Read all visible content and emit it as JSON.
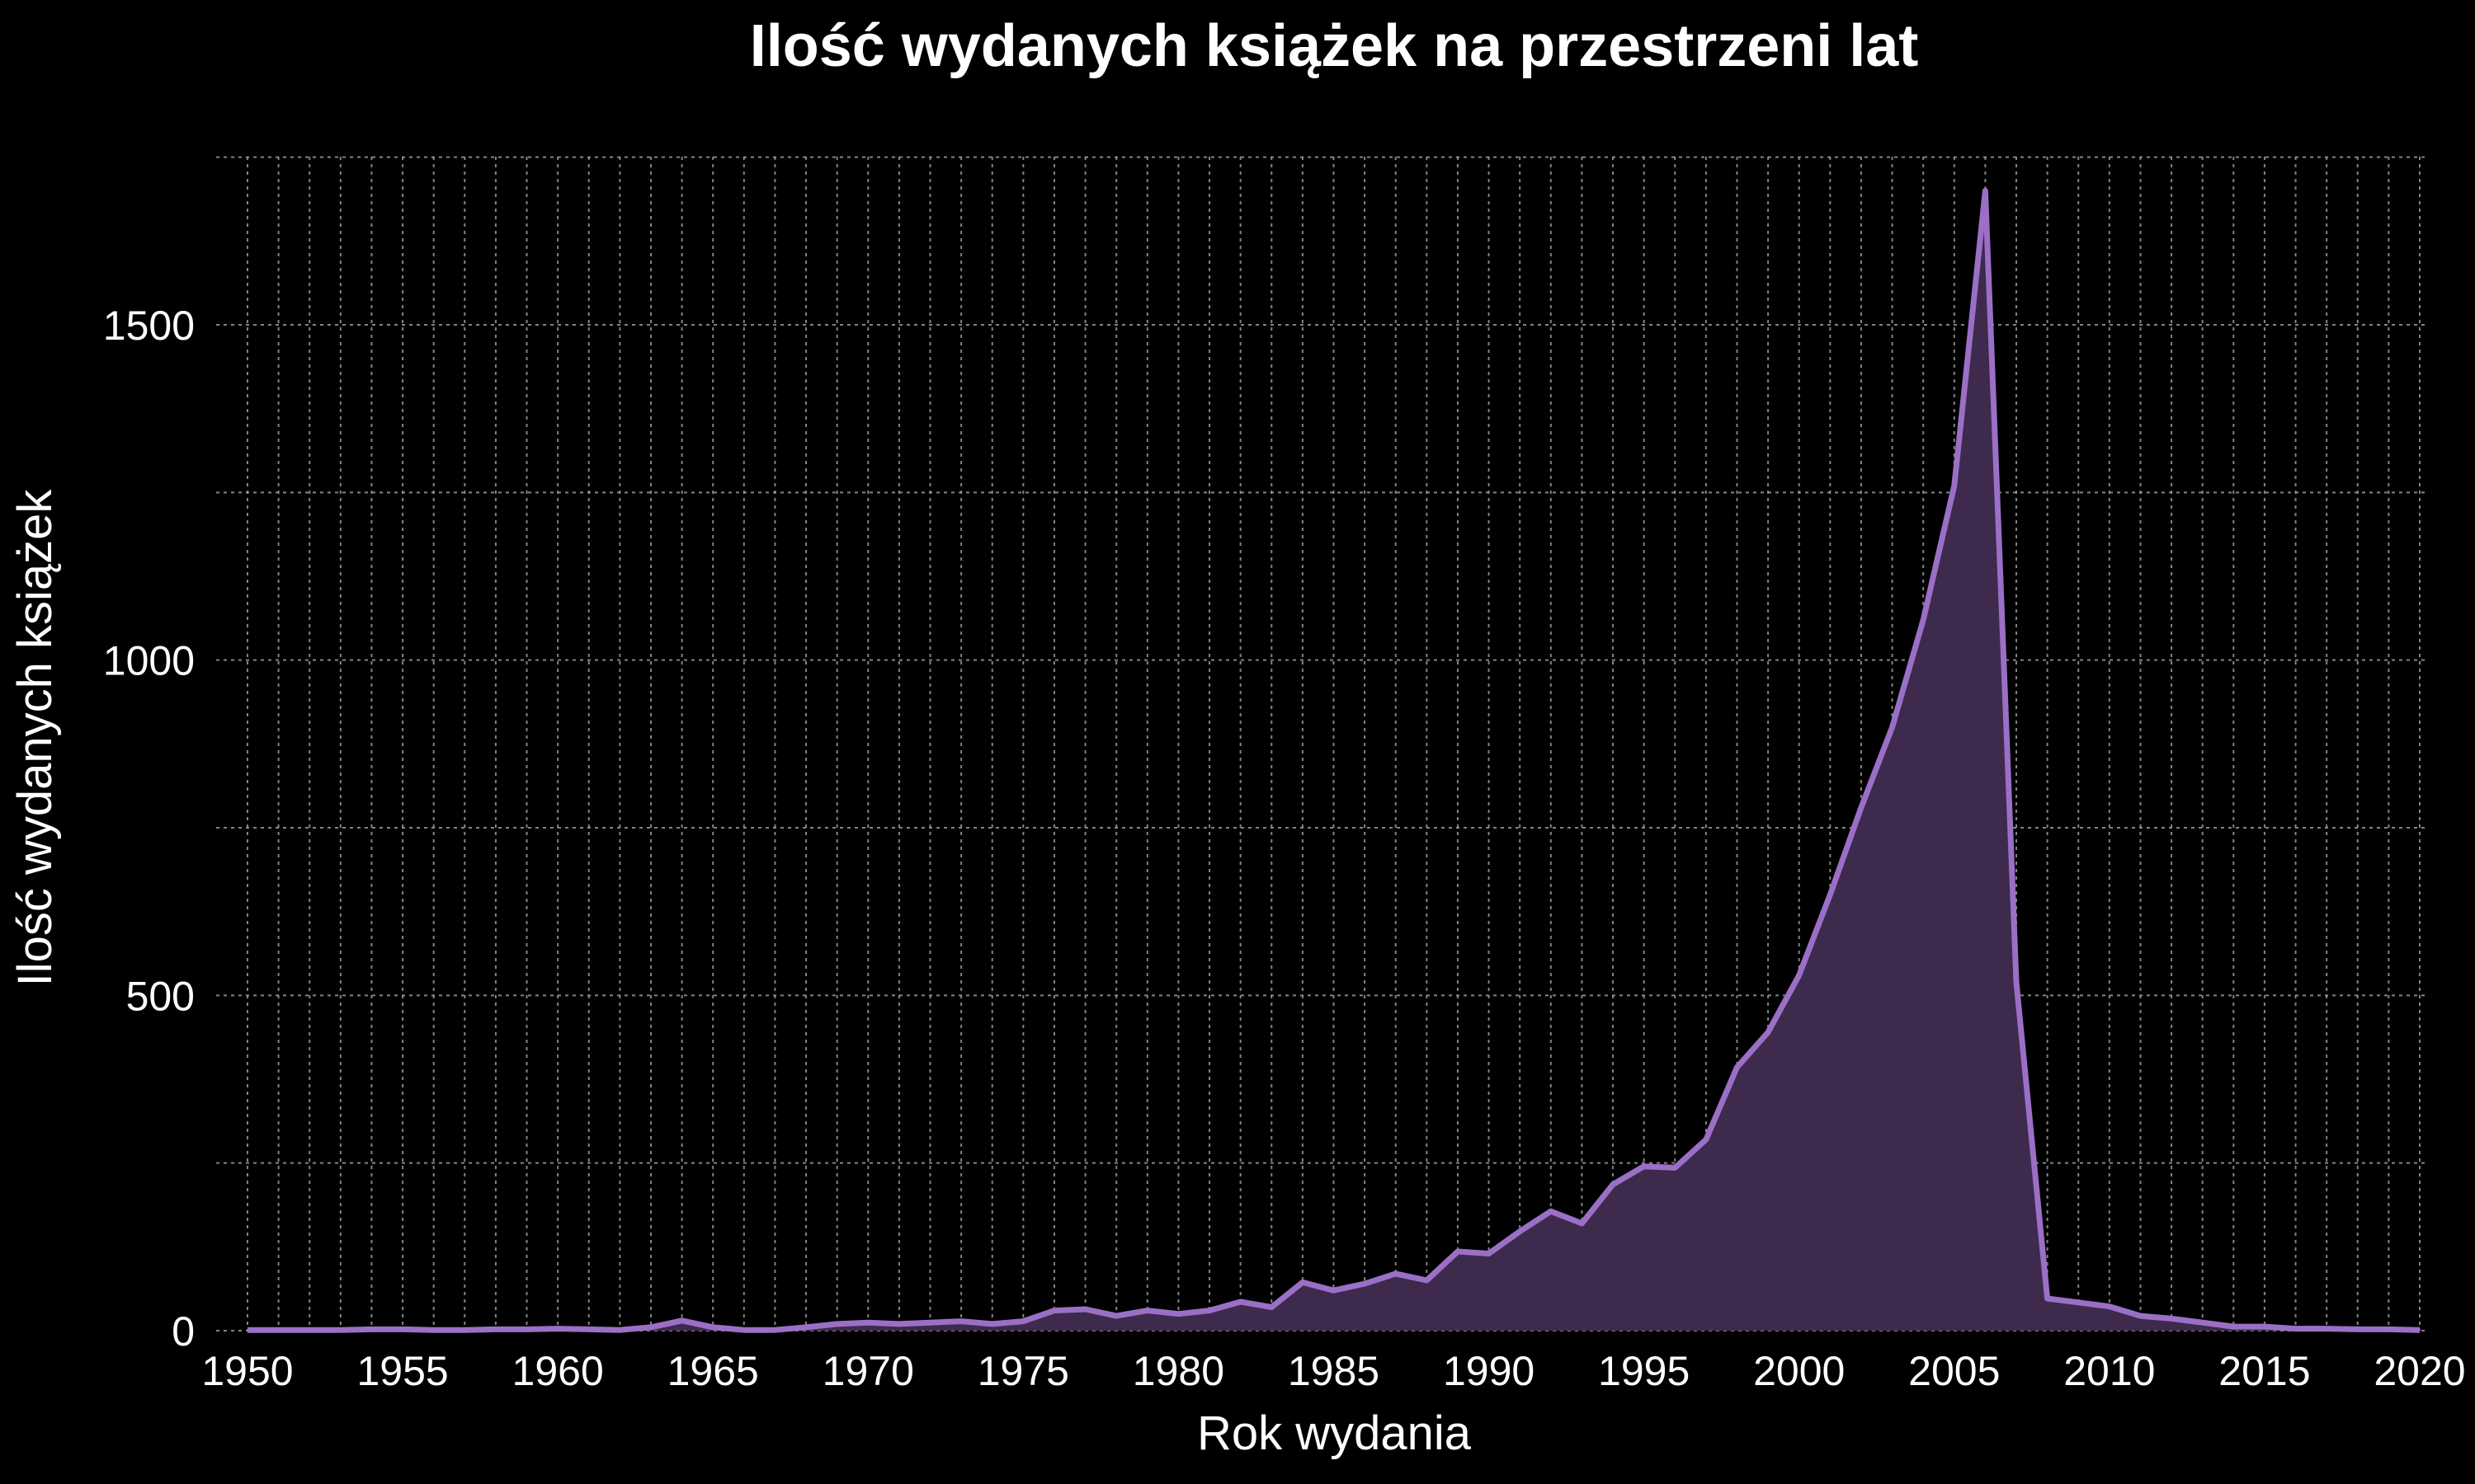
{
  "chart_data": {
    "type": "area",
    "title": "Ilość wydanych książek na przestrzeni lat",
    "xlabel": "Rok wydania",
    "ylabel": "Ilość wydanych książek",
    "xlim": [
      1950,
      2020
    ],
    "ylim": [
      0,
      1760
    ],
    "x_ticks": [
      1950,
      1955,
      1960,
      1965,
      1970,
      1975,
      1980,
      1985,
      1990,
      1995,
      2000,
      2005,
      2010,
      2015,
      2020
    ],
    "y_ticks": [
      0,
      500,
      1000,
      1500
    ],
    "x_minor_grid_step": 1,
    "y_minor_grid_step": 250,
    "grid": true,
    "line_color": "#9b6fc6",
    "fill_color": "#3d2a4d",
    "background": "#000000",
    "series": [
      {
        "x": [
          1950,
          1951,
          1952,
          1953,
          1954,
          1955,
          1956,
          1957,
          1958,
          1959,
          1960,
          1961,
          1962,
          1963,
          1964,
          1965,
          1966,
          1967,
          1968,
          1969,
          1970,
          1971,
          1972,
          1973,
          1974,
          1975,
          1976,
          1977,
          1978,
          1979,
          1980,
          1981,
          1982,
          1983,
          1984,
          1985,
          1986,
          1987,
          1988,
          1989,
          1990,
          1991,
          1992,
          1993,
          1994,
          1995,
          1996,
          1997,
          1998,
          1999,
          2000,
          2001,
          2002,
          2003,
          2004,
          2005,
          2006,
          2007,
          2008,
          2009,
          2010,
          2011,
          2012,
          2013,
          2014,
          2015,
          2016,
          2017,
          2018,
          2019,
          2020
        ],
        "values": [
          1,
          1,
          1,
          1,
          2,
          2,
          1,
          1,
          2,
          2,
          3,
          2,
          1,
          5,
          15,
          5,
          1,
          1,
          5,
          10,
          12,
          10,
          12,
          14,
          10,
          14,
          30,
          32,
          22,
          30,
          25,
          30,
          43,
          35,
          72,
          60,
          70,
          85,
          75,
          118,
          115,
          148,
          178,
          160,
          218,
          245,
          243,
          285,
          393,
          445,
          530,
          650,
          780,
          900,
          1060,
          1260,
          1700,
          520,
          48,
          42,
          36,
          22,
          18,
          12,
          6,
          6,
          3,
          3,
          2,
          2,
          1
        ]
      }
    ]
  }
}
